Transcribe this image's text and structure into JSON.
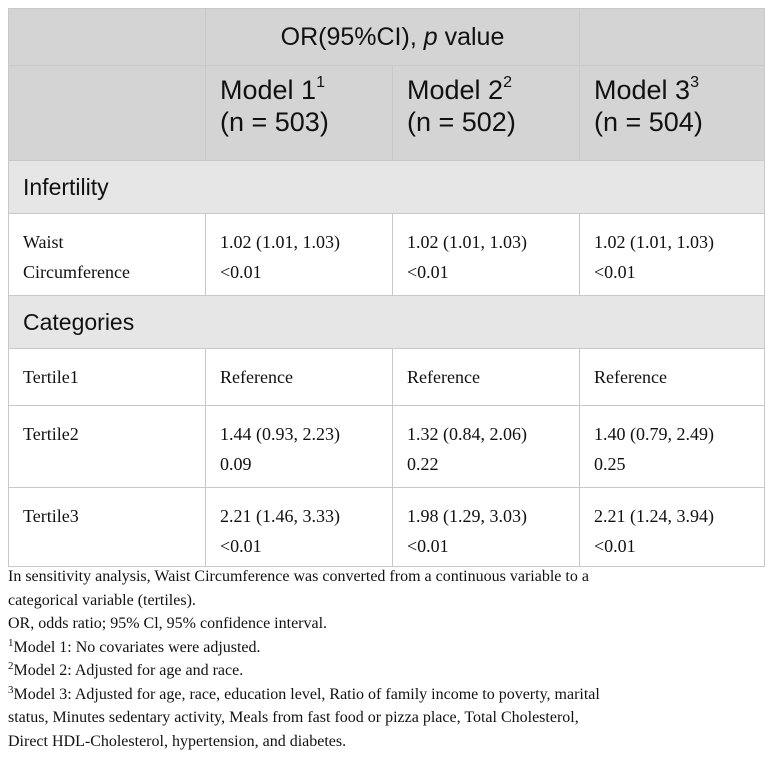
{
  "header": {
    "or_label": "OR(95%CI), ",
    "p_label": "p",
    "value_label": " value",
    "models": [
      {
        "name": "Model 1",
        "sup": "1",
        "n": "(n = 503)"
      },
      {
        "name": "Model 2",
        "sup": "2",
        "n": "(n = 502)"
      },
      {
        "name": "Model 3",
        "sup": "3",
        "n": "(n = 504)"
      }
    ]
  },
  "sections": {
    "infertility": "Infertility",
    "categories": "Categories"
  },
  "rows": {
    "waist": {
      "label_line1": "Waist",
      "label_line2": "Circumference",
      "cells": [
        {
          "ci": "1.02 (1.01, 1.03)",
          "p": "<0.01"
        },
        {
          "ci": "1.02 (1.01, 1.03)",
          "p": "<0.01"
        },
        {
          "ci": "1.02 (1.01, 1.03)",
          "p": "<0.01"
        }
      ]
    },
    "tertile1": {
      "label": "Tertile1",
      "cells": [
        "Reference",
        "Reference",
        "Reference"
      ]
    },
    "tertile2": {
      "label": "Tertile2",
      "cells": [
        {
          "ci": "1.44 (0.93, 2.23)",
          "p": "0.09"
        },
        {
          "ci": "1.32 (0.84, 2.06)",
          "p": "0.22"
        },
        {
          "ci": "1.40 (0.79, 2.49)",
          "p": "0.25"
        }
      ]
    },
    "tertile3": {
      "label": "Tertile3",
      "cells": [
        {
          "ci": "2.21 (1.46, 3.33)",
          "p": "<0.01"
        },
        {
          "ci": "1.98 (1.29, 3.03)",
          "p": "<0.01"
        },
        {
          "ci": "2.21 (1.24, 3.94)",
          "p": "<0.01"
        }
      ]
    }
  },
  "notes": {
    "sensitivity_line1": "In sensitivity analysis, Waist Circumference was converted from a continuous variable to a",
    "sensitivity_line2": "categorical variable (tertiles).",
    "abbrev": "OR, odds ratio; 95% Cl, 95% confidence interval.",
    "fn1_sup": "1",
    "fn1": "Model 1: No covariates were adjusted.",
    "fn2_sup": "2",
    "fn2": "Model 2: Adjusted for age and race.",
    "fn3_sup": "3",
    "fn3_line1": "Model 3: Adjusted for age, race, education level, Ratio of family income to poverty, marital",
    "fn3_line2": "status, Minutes sedentary activity, Meals from fast food or pizza place, Total Cholesterol,",
    "fn3_line3": "Direct HDL-Cholesterol, hypertension, and diabetes."
  }
}
